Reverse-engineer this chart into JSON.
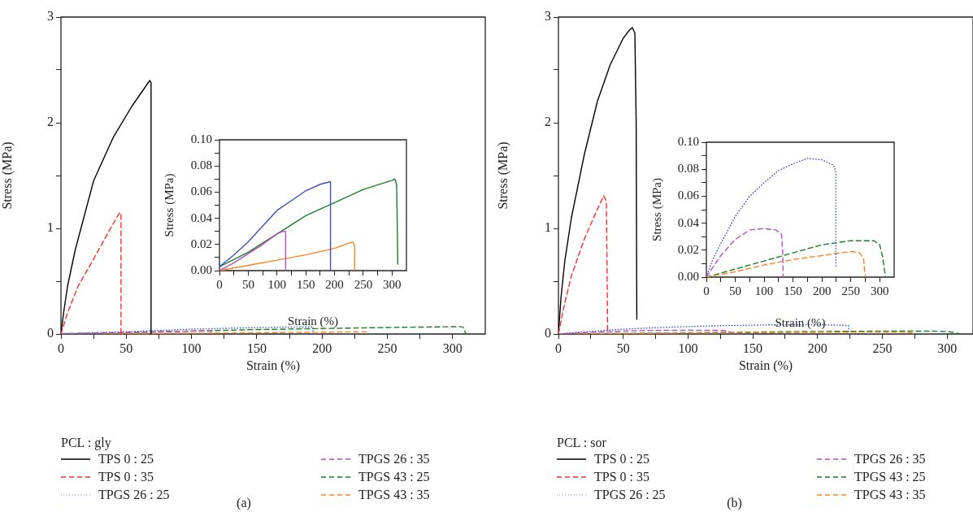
{
  "chart_data": [
    {
      "type": "line",
      "xlabel": "Strain (%)",
      "ylabel": "Stress (MPa)",
      "xlim": [
        0,
        325
      ],
      "xticks": [
        0,
        {
          "value": 25,
          "label": null
        },
        50,
        {
          "value": 75,
          "label": null
        },
        100,
        {
          "value": 125,
          "label": null
        },
        150,
        {
          "value": 175,
          "label": null
        },
        200,
        {
          "value": 225,
          "label": null
        },
        250,
        {
          "value": 275,
          "label": null
        },
        300
      ],
      "ylim": [
        0,
        3
      ],
      "yticks": [
        0,
        {
          "value": 0.5,
          "label": null
        },
        1,
        {
          "value": 1.5,
          "label": null
        },
        2,
        {
          "value": 2.5,
          "label": null
        },
        3
      ],
      "legend": "bottom",
      "legend_title": "PCL : gly",
      "annotations": [
        "(a)"
      ],
      "series": [
        {
          "name": "TPS 0 : 25",
          "color": "#000000",
          "line_style": "solid",
          "x": [
            0,
            2,
            5,
            11,
            25,
            40,
            54,
            68,
            69,
            69
          ],
          "values": [
            0,
            0.2,
            0.45,
            0.8,
            1.45,
            1.86,
            2.15,
            2.4,
            2.38,
            0
          ]
        },
        {
          "name": "TPS 0 : 35",
          "color": "#ff2a2a",
          "line_style": "dashed",
          "x": [
            0,
            5,
            13,
            25,
            37,
            45,
            46,
            46
          ],
          "values": [
            0,
            0.2,
            0.45,
            0.71,
            0.98,
            1.15,
            1.14,
            0
          ]
        },
        {
          "name": "TPGS 26 : 25",
          "color": "#3a4fc4",
          "line_style": "dotted",
          "x": [
            0,
            25,
            50,
            100,
            150,
            175,
            193,
            193
          ],
          "values": [
            0.003,
            0.012,
            0.022,
            0.046,
            0.061,
            0.066,
            0.068,
            0
          ]
        },
        {
          "name": "TPGS 26 : 35",
          "color": "#b44fc0",
          "line_style": "dashed",
          "x": [
            0,
            25,
            50,
            75,
            100,
            110,
            115,
            115
          ],
          "values": [
            0,
            0.006,
            0.013,
            0.02,
            0.028,
            0.03,
            0.03,
            0
          ]
        },
        {
          "name": "TPGS 43 : 25",
          "color": "#1a7f2a",
          "line_style": "dashed",
          "x": [
            0,
            50,
            100,
            150,
            200,
            250,
            300,
            305,
            308,
            310
          ],
          "values": [
            0.003,
            0.014,
            0.028,
            0.042,
            0.052,
            0.062,
            0.069,
            0.07,
            0.066,
            0.005
          ]
        },
        {
          "name": "TPGS 43 : 35",
          "color": "#ff8020",
          "line_style": "dashed",
          "x": [
            0,
            50,
            100,
            150,
            200,
            225,
            232,
            235,
            235
          ],
          "values": [
            0,
            0.004,
            0.008,
            0.012,
            0.017,
            0.021,
            0.022,
            0.019,
            0
          ]
        }
      ]
    },
    {
      "type": "line",
      "xlabel": "Strain (%)",
      "ylabel": "Stress (MPa)",
      "xlim": [
        0,
        325
      ],
      "xticks": [
        0,
        {
          "value": 25,
          "label": null
        },
        50,
        {
          "value": 75,
          "label": null
        },
        100,
        {
          "value": 125,
          "label": null
        },
        150,
        {
          "value": 175,
          "label": null
        },
        200,
        {
          "value": 225,
          "label": null
        },
        250,
        {
          "value": 275,
          "label": null
        },
        300
      ],
      "ylim": [
        0,
        0.1
      ],
      "yticks": [
        {
          "value": 0,
          "label": "0.00"
        },
        {
          "value": 0.01,
          "label": null
        },
        {
          "value": 0.02,
          "label": "0.02"
        },
        {
          "value": 0.03,
          "label": null
        },
        {
          "value": 0.04,
          "label": "0.04"
        },
        {
          "value": 0.05,
          "label": null
        },
        {
          "value": 0.06,
          "label": "0.06"
        },
        {
          "value": 0.07,
          "label": null
        },
        {
          "value": 0.08,
          "label": "0.08"
        },
        {
          "value": 0.09,
          "label": null
        },
        {
          "value": 0.1,
          "label": "0.10"
        }
      ],
      "series": [
        {
          "color": "#3a4fc4",
          "line_style": "solid",
          "x": [
            0,
            25,
            50,
            100,
            150,
            175,
            193,
            193
          ],
          "values": [
            0.003,
            0.012,
            0.022,
            0.046,
            0.061,
            0.066,
            0.068,
            0
          ]
        },
        {
          "color": "#b44fc0",
          "line_style": "solid",
          "x": [
            0,
            25,
            50,
            75,
            100,
            110,
            115,
            115
          ],
          "values": [
            0,
            0.006,
            0.013,
            0.02,
            0.028,
            0.03,
            0.03,
            0
          ]
        },
        {
          "color": "#1a7f2a",
          "line_style": "solid",
          "x": [
            0,
            50,
            100,
            150,
            200,
            250,
            300,
            305,
            308,
            310
          ],
          "values": [
            0.003,
            0.014,
            0.028,
            0.042,
            0.052,
            0.062,
            0.069,
            0.07,
            0.066,
            0.005
          ]
        },
        {
          "color": "#ff8020",
          "line_style": "solid",
          "x": [
            0,
            50,
            100,
            150,
            200,
            225,
            232,
            235,
            235
          ],
          "values": [
            0,
            0.004,
            0.008,
            0.012,
            0.017,
            0.021,
            0.022,
            0.019,
            0
          ]
        }
      ]
    },
    {
      "type": "line",
      "xlabel": "Strain (%)",
      "ylabel": "Stress (MPa)",
      "xlim": [
        0,
        320
      ],
      "xticks": [
        0,
        {
          "value": 25,
          "label": null
        },
        50,
        {
          "value": 75,
          "label": null
        },
        100,
        {
          "value": 125,
          "label": null
        },
        150,
        {
          "value": 175,
          "label": null
        },
        200,
        {
          "value": 225,
          "label": null
        },
        250,
        {
          "value": 275,
          "label": null
        },
        300
      ],
      "ylim": [
        0,
        3
      ],
      "yticks": [
        0,
        {
          "value": 0.5,
          "label": null
        },
        1,
        {
          "value": 1.5,
          "label": null
        },
        2,
        {
          "value": 2.5,
          "label": null
        },
        3
      ],
      "legend": "bottom",
      "legend_title": "PCL : sor",
      "annotations": [
        "(b)"
      ],
      "series": [
        {
          "name": "TPS 0 : 25",
          "color": "#000000",
          "line_style": "solid",
          "x": [
            0,
            2,
            5,
            10,
            20,
            30,
            40,
            50,
            55,
            57,
            59,
            60,
            60.5
          ],
          "values": [
            0,
            0.35,
            0.7,
            1.1,
            1.7,
            2.2,
            2.55,
            2.8,
            2.88,
            2.9,
            2.85,
            2.0,
            0.14
          ]
        },
        {
          "name": "TPS 0 : 35",
          "color": "#ff2a2a",
          "line_style": "dashed",
          "x": [
            0,
            5,
            10,
            20,
            30,
            35,
            37,
            38
          ],
          "values": [
            0,
            0.3,
            0.55,
            0.9,
            1.18,
            1.31,
            1.25,
            0
          ]
        },
        {
          "name": "TPGS 26 : 25",
          "color": "#3a4fc4",
          "line_style": "dotted",
          "x": [
            0,
            10,
            25,
            50,
            75,
            100,
            125,
            150,
            175,
            200,
            220,
            224,
            224
          ],
          "values": [
            0,
            0.012,
            0.025,
            0.045,
            0.06,
            0.07,
            0.079,
            0.084,
            0.088,
            0.087,
            0.083,
            0.078,
            0.007
          ]
        },
        {
          "name": "TPGS 26 : 35",
          "color": "#b44fc0",
          "line_style": "dashed",
          "x": [
            0,
            25,
            50,
            75,
            100,
            120,
            130,
            132,
            133
          ],
          "values": [
            0,
            0.016,
            0.028,
            0.035,
            0.036,
            0.035,
            0.032,
            0.02,
            0
          ]
        },
        {
          "name": "TPGS 43 : 25",
          "color": "#1a7f2a",
          "line_style": "dashed",
          "x": [
            0,
            50,
            100,
            150,
            200,
            250,
            290,
            300,
            305,
            310
          ],
          "values": [
            0,
            0.006,
            0.012,
            0.018,
            0.024,
            0.027,
            0.027,
            0.024,
            0.015,
            0
          ]
        },
        {
          "name": "TPGS 43 : 35",
          "color": "#ff8020",
          "line_style": "dashed",
          "x": [
            0,
            50,
            100,
            150,
            200,
            250,
            265,
            272,
            275
          ],
          "values": [
            0,
            0.004,
            0.009,
            0.013,
            0.016,
            0.019,
            0.018,
            0.014,
            0
          ]
        }
      ]
    },
    {
      "type": "line",
      "xlabel": "Strain (%)",
      "ylabel": "Stress (MPa)",
      "xlim": [
        0,
        325
      ],
      "xticks": [
        0,
        {
          "value": 25,
          "label": null
        },
        50,
        {
          "value": 75,
          "label": null
        },
        100,
        {
          "value": 125,
          "label": null
        },
        150,
        {
          "value": 175,
          "label": null
        },
        200,
        {
          "value": 225,
          "label": null
        },
        250,
        {
          "value": 275,
          "label": null
        },
        300
      ],
      "ylim": [
        0,
        0.1
      ],
      "yticks": [
        {
          "value": 0,
          "label": "0.00"
        },
        {
          "value": 0.01,
          "label": null
        },
        {
          "value": 0.02,
          "label": "0.02"
        },
        {
          "value": 0.03,
          "label": null
        },
        {
          "value": 0.04,
          "label": "0.04"
        },
        {
          "value": 0.05,
          "label": null
        },
        {
          "value": 0.06,
          "label": "0.06"
        },
        {
          "value": 0.07,
          "label": null
        },
        {
          "value": 0.08,
          "label": "0.08"
        },
        {
          "value": 0.09,
          "label": null
        },
        {
          "value": 0.1,
          "label": "0.10"
        }
      ],
      "series": [
        {
          "color": "#3a4fc4",
          "line_style": "dotted",
          "x": [
            0,
            10,
            25,
            50,
            75,
            100,
            125,
            150,
            175,
            200,
            220,
            224,
            224
          ],
          "values": [
            0,
            0.012,
            0.025,
            0.045,
            0.06,
            0.07,
            0.079,
            0.084,
            0.088,
            0.087,
            0.083,
            0.078,
            0.007
          ]
        },
        {
          "color": "#b44fc0",
          "line_style": "dashed",
          "x": [
            0,
            25,
            50,
            75,
            100,
            120,
            130,
            132,
            133
          ],
          "values": [
            0,
            0.016,
            0.028,
            0.035,
            0.036,
            0.035,
            0.032,
            0.02,
            0
          ]
        },
        {
          "color": "#1a7f2a",
          "line_style": "dashed",
          "x": [
            0,
            50,
            100,
            150,
            200,
            250,
            290,
            300,
            305,
            310
          ],
          "values": [
            0,
            0.006,
            0.012,
            0.018,
            0.024,
            0.027,
            0.027,
            0.024,
            0.015,
            0
          ]
        },
        {
          "color": "#ff8020",
          "line_style": "dashed",
          "x": [
            0,
            50,
            100,
            150,
            200,
            250,
            265,
            272,
            275
          ],
          "values": [
            0,
            0.004,
            0.009,
            0.013,
            0.016,
            0.019,
            0.018,
            0.014,
            0
          ]
        }
      ]
    }
  ]
}
